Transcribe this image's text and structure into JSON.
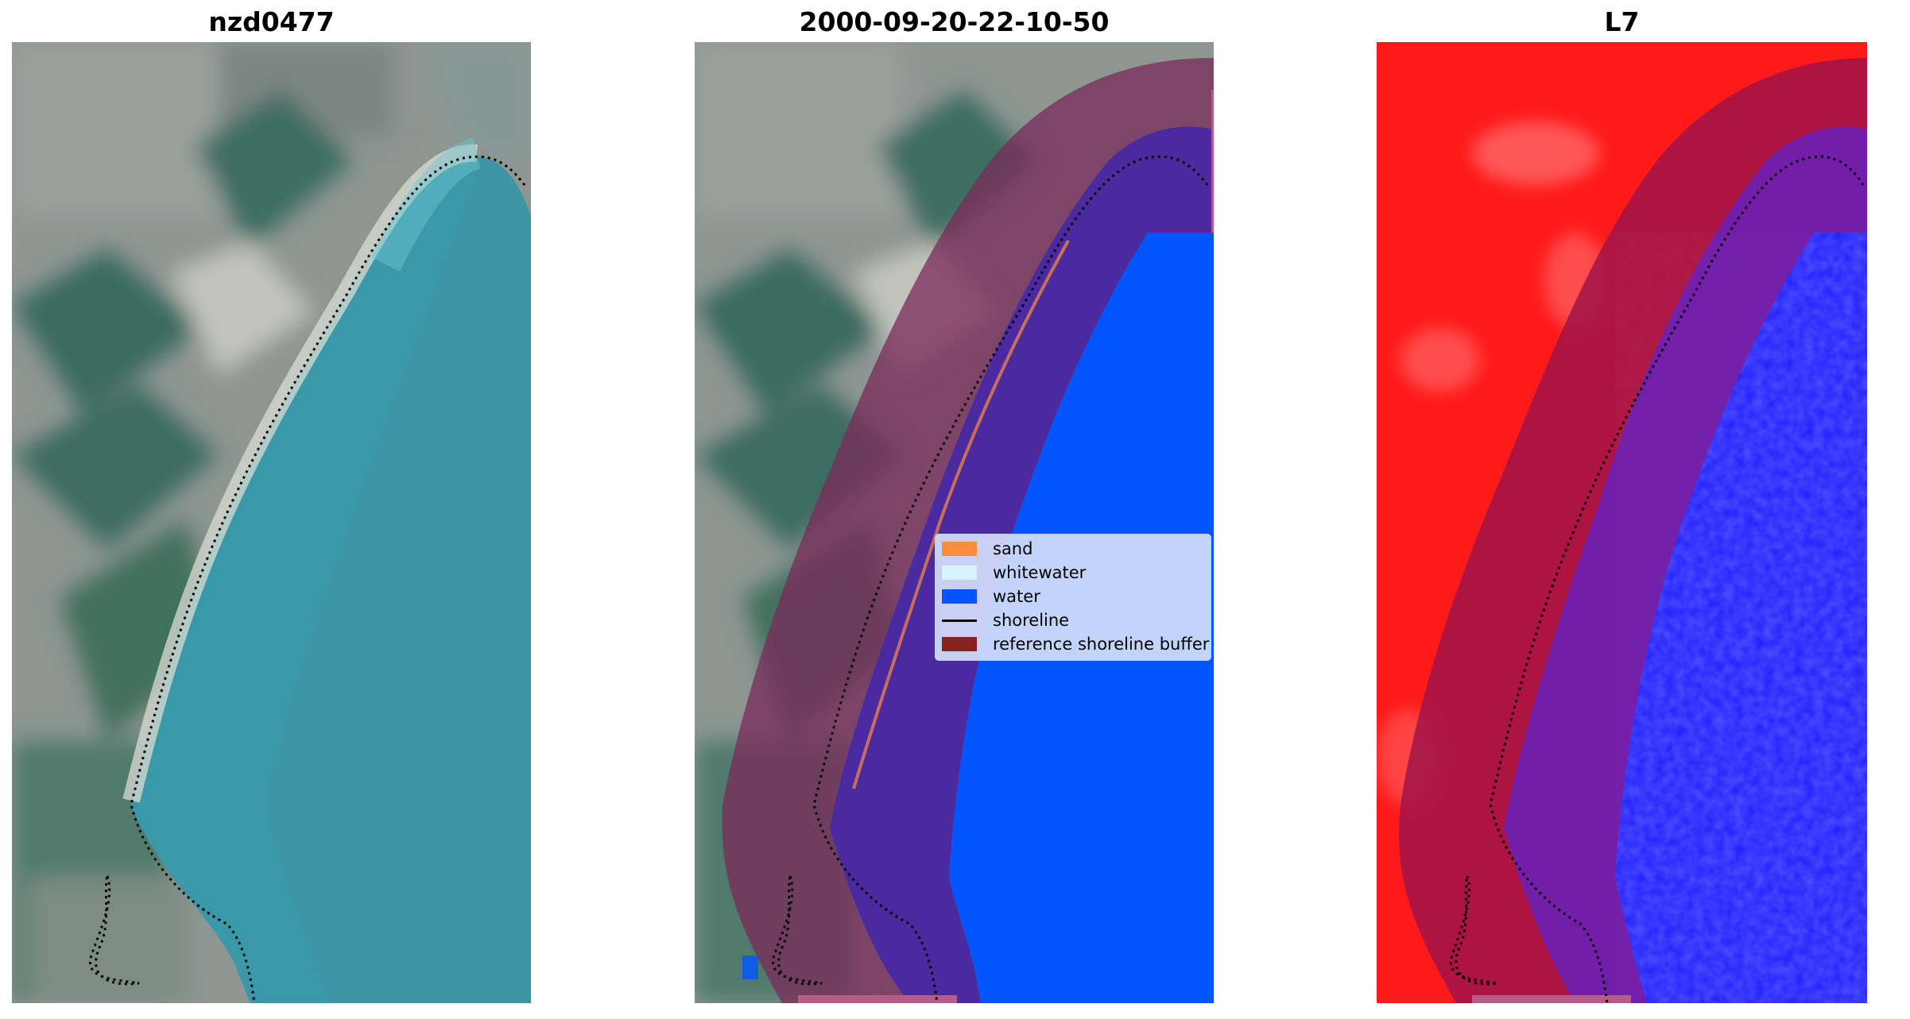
{
  "titles": {
    "site": "nzd0477",
    "date": "2000-09-20-22-10-50",
    "satellite": "L7"
  },
  "legend": {
    "sand": {
      "label": "sand",
      "color": "#ff8c3c"
    },
    "whitewater": {
      "label": "whitewater",
      "color": "#d8f4fa"
    },
    "water": {
      "label": "water",
      "color": "#0055ff"
    },
    "shoreline": {
      "label": "shoreline",
      "color": "#000000"
    },
    "buffer": {
      "label": "reference shoreline buffer",
      "color": "#8b2222"
    }
  },
  "colors": {
    "land_gray": "#8c9490",
    "vegetation": "#3a6a60",
    "lagoon": "#3a97a6",
    "sand_white": "#d8d8d0",
    "class_water": "#0055ff",
    "buffer_overlay": "#7a2a5a",
    "ndwi_land": "#ff1a1a",
    "ndwi_water": "#1a1aff"
  }
}
